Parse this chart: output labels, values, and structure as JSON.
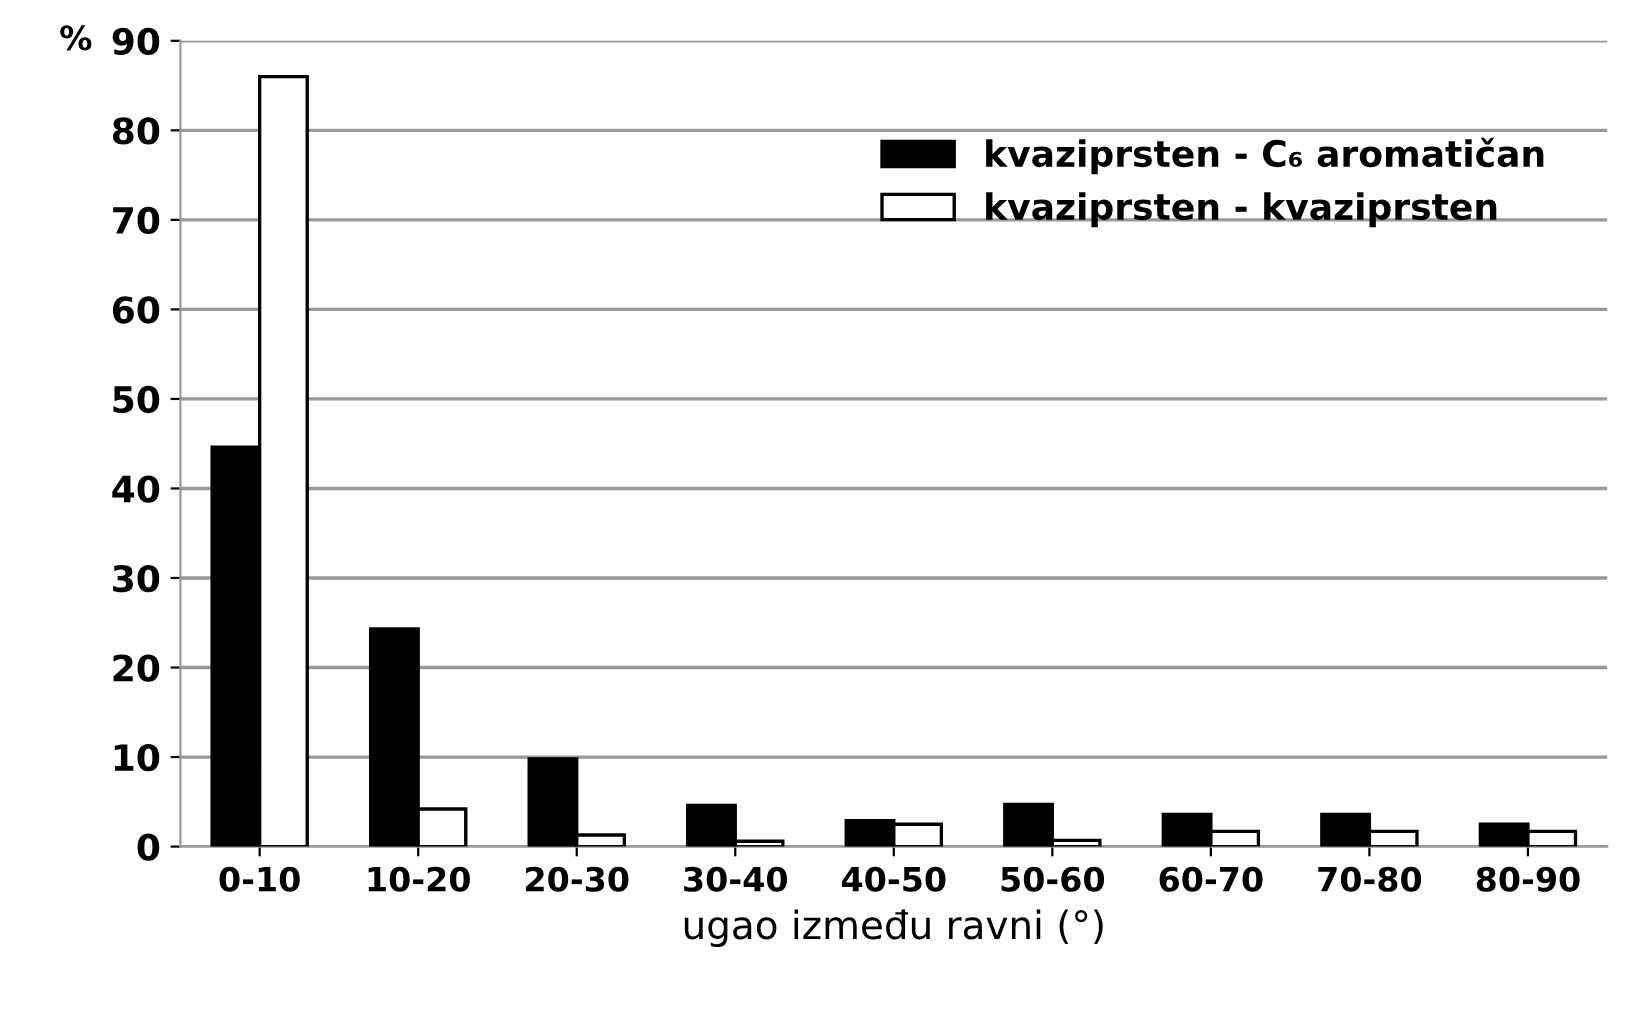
{
  "chart_data": {
    "type": "bar",
    "xlabel": "ugao između ravni (°)",
    "ylabel": "%",
    "categories": [
      "0-10",
      "10-20",
      "20-30",
      "30-40",
      "40-50",
      "50-60",
      "60-70",
      "70-80",
      "80-90"
    ],
    "series": [
      {
        "name": "kvaziprsten - C₆ aromatičan",
        "color": "#000000",
        "values": [
          44.6,
          24.3,
          9.8,
          4.6,
          2.9,
          4.7,
          3.6,
          3.6,
          2.5
        ]
      },
      {
        "name": "kvaziprsten - kvaziprsten",
        "color": "#ffffff",
        "values": [
          86,
          4.2,
          1.3,
          0.6,
          2.5,
          0.7,
          1.7,
          1.7,
          1.7
        ]
      }
    ],
    "ylim": [
      0,
      90
    ],
    "yticks": [
      0,
      10,
      20,
      30,
      40,
      50,
      60,
      70,
      80,
      90
    ],
    "grid": "y",
    "legend": "top right"
  }
}
